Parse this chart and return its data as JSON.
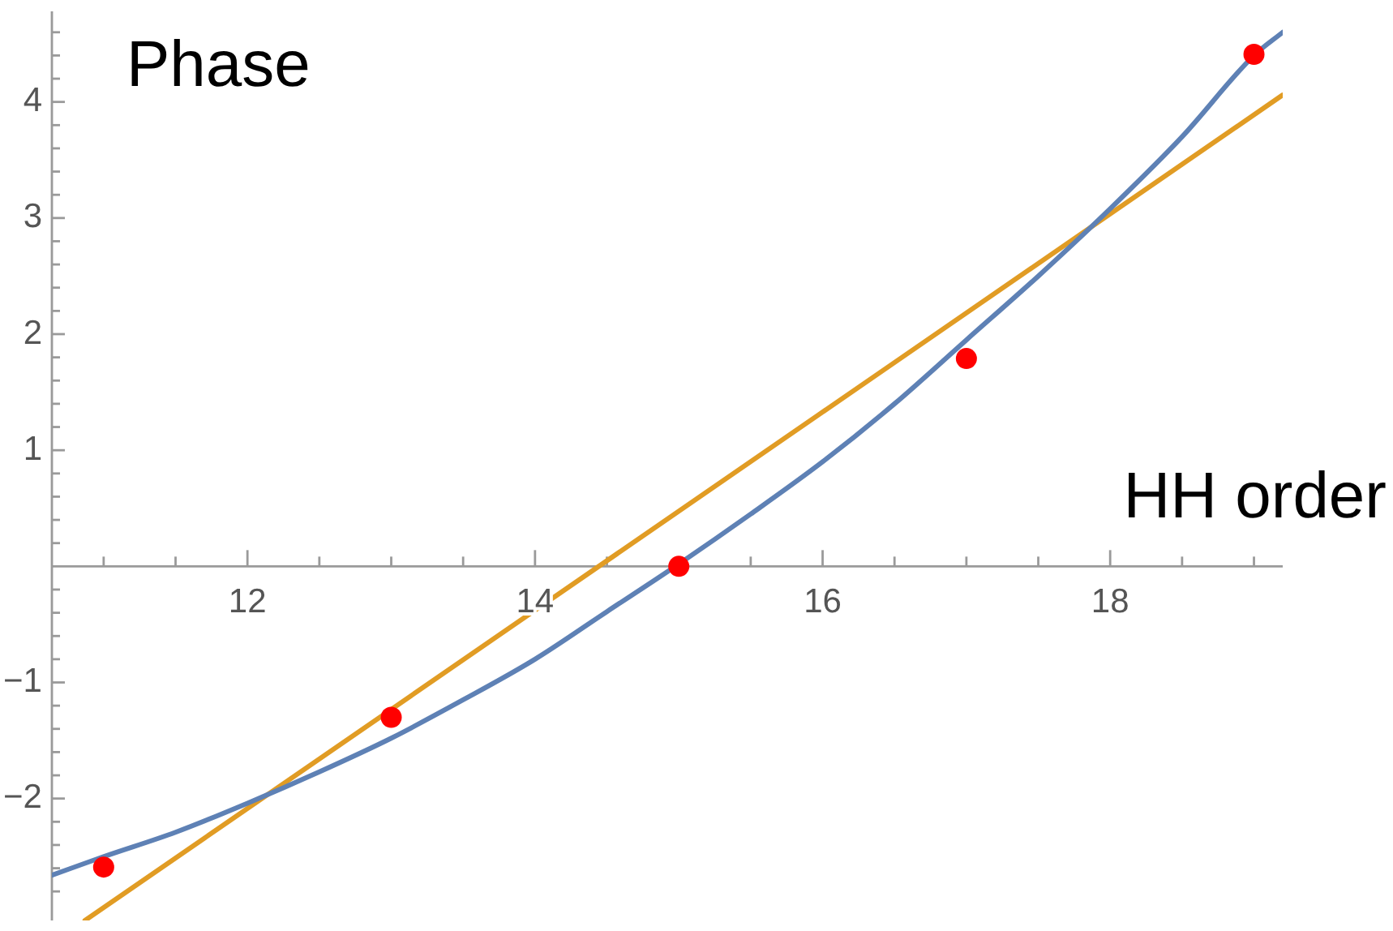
{
  "chart_data": {
    "type": "line",
    "xlabel": "HH order",
    "ylabel": "Phase",
    "xlim": [
      10.64,
      19.2
    ],
    "ylim": [
      -3.05,
      4.78
    ],
    "xticks": [
      {
        "value": 11,
        "label": null
      },
      {
        "value": 11.5,
        "label": null
      },
      12,
      {
        "value": 12.5,
        "label": null
      },
      {
        "value": 13,
        "label": null
      },
      {
        "value": 13.5,
        "label": null
      },
      14,
      {
        "value": 14.5,
        "label": null
      },
      {
        "value": 15,
        "label": null
      },
      {
        "value": 15.5,
        "label": null
      },
      16,
      {
        "value": 16.5,
        "label": null
      },
      {
        "value": 17,
        "label": null
      },
      {
        "value": 17.5,
        "label": null
      },
      18,
      {
        "value": 18.5,
        "label": null
      },
      {
        "value": 19,
        "label": null
      }
    ],
    "yticks": [
      {
        "value": -2.8,
        "label": null
      },
      {
        "value": -2.6,
        "label": null
      },
      {
        "value": -2.4,
        "label": null
      },
      {
        "value": -2.2,
        "label": null
      },
      {
        "value": -2,
        "label": "−2"
      },
      {
        "value": -1.8,
        "label": null
      },
      {
        "value": -1.6,
        "label": null
      },
      {
        "value": -1.4,
        "label": null
      },
      {
        "value": -1.2,
        "label": null
      },
      {
        "value": -1,
        "label": "−1"
      },
      {
        "value": -0.8,
        "label": null
      },
      {
        "value": -0.6,
        "label": null
      },
      {
        "value": -0.4,
        "label": null
      },
      {
        "value": -0.2,
        "label": null
      },
      {
        "value": 0.2,
        "label": null
      },
      {
        "value": 0.4,
        "label": null
      },
      {
        "value": 0.6,
        "label": null
      },
      {
        "value": 0.8,
        "label": null
      },
      1,
      {
        "value": 1.2,
        "label": null
      },
      {
        "value": 1.4,
        "label": null
      },
      {
        "value": 1.6,
        "label": null
      },
      {
        "value": 1.8,
        "label": null
      },
      2,
      {
        "value": 2.2,
        "label": null
      },
      {
        "value": 2.4,
        "label": null
      },
      {
        "value": 2.6,
        "label": null
      },
      {
        "value": 2.8,
        "label": null
      },
      3,
      {
        "value": 3.2,
        "label": null
      },
      {
        "value": 3.4,
        "label": null
      },
      {
        "value": 3.6,
        "label": null
      },
      {
        "value": 3.8,
        "label": null
      },
      4,
      {
        "value": 4.2,
        "label": null
      },
      {
        "value": 4.4,
        "label": null
      },
      {
        "value": 4.6,
        "label": null
      }
    ],
    "series": [
      {
        "type": "scatter",
        "color": "#ff0000",
        "marker": "circle",
        "x": [
          11,
          13,
          15,
          17,
          19
        ],
        "values": [
          -2.59,
          -1.3,
          0,
          1.79,
          4.41
        ]
      },
      {
        "color": "#5e81b5",
        "x": [
          10.64,
          11,
          11.5,
          12,
          12.5,
          13,
          13.5,
          14,
          14.5,
          15,
          15.5,
          16,
          16.5,
          17,
          17.5,
          18,
          18.5,
          19,
          19.2
        ],
        "values": [
          -2.66,
          -2.5,
          -2.29,
          -2.04,
          -1.77,
          -1.48,
          -1.15,
          -0.8,
          -0.39,
          0.02,
          0.45,
          0.9,
          1.4,
          1.95,
          2.5,
          3.08,
          3.7,
          4.4,
          4.6
        ]
      },
      {
        "color": "#e19c24",
        "x": [
          10.87,
          19.2
        ],
        "values": [
          -3.05,
          4.06
        ]
      }
    ]
  }
}
